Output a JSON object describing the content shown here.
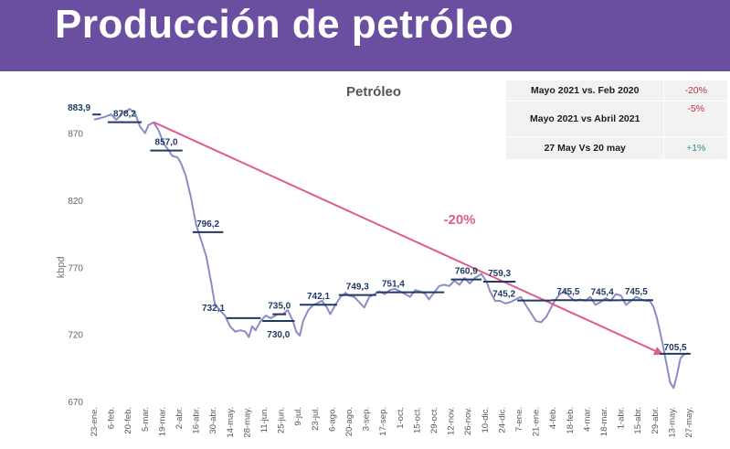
{
  "header": {
    "title": "Producción de petróleo"
  },
  "summary_table": {
    "rows": [
      {
        "label": "Mayo 2021 vs. Feb 2020",
        "value": "-20%",
        "color": "#c0304b"
      },
      {
        "label": "Mayo 2021 vs Abril 2021",
        "value": "-5%",
        "color": "#c0304b"
      },
      {
        "label": "27 May Vs 20 may",
        "value": "+1%",
        "color": "#3a8a8a"
      }
    ]
  },
  "colors": {
    "banner": "#6a4fa1",
    "line": "#8e8bc4",
    "levels": "#1f3a64",
    "label_text": "#1f3a64",
    "trend_arrow": "#e05c8c",
    "trend_label": "#e05c8c"
  },
  "chart_data": {
    "type": "line",
    "title": "Petróleo",
    "ylabel": "kbpd",
    "ylim": [
      670,
      893
    ],
    "yticks": [
      670,
      720,
      770,
      820,
      870
    ],
    "x_categories": [
      "23-ene.",
      "6-feb.",
      "20-feb.",
      "5-mar.",
      "19-mar.",
      "2-abr.",
      "16-abr.",
      "30-abr.",
      "14-may.",
      "28-may.",
      "11-jun.",
      "25-jun.",
      "9-jul.",
      "23-jul.",
      "6-ago.",
      "20-ago.",
      "3-sep.",
      "17-sep.",
      "1-oct.",
      "15-oct.",
      "29-oct.",
      "12-nov.",
      "26-nov.",
      "10-dic.",
      "24-dic.",
      "7-ene.",
      "21-ene.",
      "4-feb.",
      "18-feb.",
      "4-mar.",
      "18-mar.",
      "1-abr.",
      "15-abr.",
      "29-abr.",
      "13-may.",
      "27-may."
    ],
    "series": [
      {
        "values": [
          [
            0,
            880
          ],
          [
            0.6,
            882
          ],
          [
            1,
            884
          ],
          [
            1.3,
            880
          ],
          [
            1.7,
            885
          ],
          [
            2.1,
            888
          ],
          [
            2.4,
            885
          ],
          [
            2.7,
            875
          ],
          [
            3.0,
            870
          ],
          [
            3.2,
            876
          ],
          [
            3.5,
            878
          ],
          [
            3.8,
            872
          ],
          [
            4.1,
            862
          ],
          [
            4.4,
            857
          ],
          [
            4.6,
            853
          ],
          [
            4.9,
            852
          ],
          [
            5.1,
            848
          ],
          [
            5.4,
            838
          ],
          [
            5.7,
            822
          ],
          [
            6.0,
            802
          ],
          [
            6.3,
            790
          ],
          [
            6.6,
            778
          ],
          [
            6.9,
            758
          ],
          [
            7.1,
            743
          ],
          [
            7.4,
            738
          ],
          [
            7.7,
            734
          ],
          [
            8.0,
            726
          ],
          [
            8.3,
            722
          ],
          [
            8.6,
            723
          ],
          [
            8.9,
            722
          ],
          [
            9.1,
            718
          ],
          [
            9.3,
            726
          ],
          [
            9.5,
            723
          ],
          [
            9.8,
            730
          ],
          [
            10.1,
            734
          ],
          [
            10.4,
            732
          ],
          [
            10.8,
            735
          ],
          [
            11.1,
            735
          ],
          [
            11.4,
            738
          ],
          [
            11.7,
            730
          ],
          [
            11.9,
            722
          ],
          [
            12.1,
            719
          ],
          [
            12.3,
            730
          ],
          [
            12.6,
            738
          ],
          [
            12.9,
            742
          ],
          [
            13.1,
            743
          ],
          [
            13.4,
            745
          ],
          [
            13.7,
            740
          ],
          [
            13.9,
            735
          ],
          [
            14.2,
            742
          ],
          [
            14.5,
            748
          ],
          [
            14.8,
            751
          ],
          [
            15.0,
            749
          ],
          [
            15.3,
            748
          ],
          [
            15.6,
            744
          ],
          [
            15.9,
            740
          ],
          [
            16.2,
            748
          ],
          [
            16.5,
            750
          ],
          [
            16.8,
            752
          ],
          [
            17.1,
            750
          ],
          [
            17.4,
            753
          ],
          [
            17.7,
            754
          ],
          [
            18.0,
            752
          ],
          [
            18.3,
            750
          ],
          [
            18.6,
            748
          ],
          [
            18.9,
            753
          ],
          [
            19.2,
            752
          ],
          [
            19.5,
            750
          ],
          [
            19.7,
            746
          ],
          [
            20.0,
            751
          ],
          [
            20.3,
            756
          ],
          [
            20.6,
            757
          ],
          [
            20.9,
            756
          ],
          [
            21.2,
            760
          ],
          [
            21.5,
            757
          ],
          [
            21.8,
            762
          ],
          [
            22.1,
            758
          ],
          [
            22.4,
            762
          ],
          [
            22.8,
            765
          ],
          [
            23.1,
            759
          ],
          [
            23.3,
            752
          ],
          [
            23.6,
            745
          ],
          [
            23.9,
            745
          ],
          [
            24.2,
            743
          ],
          [
            24.5,
            744
          ],
          [
            24.8,
            746
          ],
          [
            25.1,
            748
          ],
          [
            25.4,
            742
          ],
          [
            25.7,
            736
          ],
          [
            26.0,
            730
          ],
          [
            26.3,
            729
          ],
          [
            26.6,
            733
          ],
          [
            26.9,
            740
          ],
          [
            27.1,
            745
          ],
          [
            27.4,
            750
          ],
          [
            27.7,
            752
          ],
          [
            28.0,
            748
          ],
          [
            28.3,
            745
          ],
          [
            28.6,
            746
          ],
          [
            28.9,
            745
          ],
          [
            29.2,
            748
          ],
          [
            29.5,
            742
          ],
          [
            29.8,
            744
          ],
          [
            30.1,
            747
          ],
          [
            30.4,
            745
          ],
          [
            30.7,
            750
          ],
          [
            31.0,
            749
          ],
          [
            31.3,
            742
          ],
          [
            31.6,
            745
          ],
          [
            31.9,
            748
          ],
          [
            32.2,
            746
          ],
          [
            32.5,
            745
          ],
          [
            32.7,
            745
          ],
          [
            32.9,
            741
          ],
          [
            33.1,
            733
          ],
          [
            33.3,
            722
          ],
          [
            33.5,
            710
          ],
          [
            33.7,
            697
          ],
          [
            33.9,
            684
          ],
          [
            34.1,
            680
          ],
          [
            34.3,
            690
          ],
          [
            34.5,
            702
          ],
          [
            34.7,
            705
          ],
          [
            35.0,
            706
          ]
        ]
      }
    ],
    "level_annotations": [
      {
        "x0": -0.1,
        "x1": 0.4,
        "y": 883.9,
        "label": "883,9"
      },
      {
        "x0": 0.8,
        "x1": 2.8,
        "y": 878.2,
        "label": "878,2"
      },
      {
        "x0": 3.3,
        "x1": 5.2,
        "y": 857.0,
        "label": "857,0"
      },
      {
        "x0": 5.8,
        "x1": 7.6,
        "y": 796.2,
        "label": "796,2"
      },
      {
        "x0": 7.8,
        "x1": 9.8,
        "y": 732.1,
        "label": "732,1"
      },
      {
        "x0": 9.9,
        "x1": 11.8,
        "y": 730.0,
        "label": "730,0"
      },
      {
        "x0": 10.5,
        "x1": 11.3,
        "y": 735.0,
        "label": "735,0"
      },
      {
        "x0": 12.1,
        "x1": 14.3,
        "y": 742.1,
        "label": "742,1"
      },
      {
        "x0": 14.4,
        "x1": 16.6,
        "y": 749.3,
        "label": "749,3"
      },
      {
        "x0": 16.6,
        "x1": 18.6,
        "y": 751.4,
        "label": "751,4"
      },
      {
        "x0": 18.6,
        "x1": 20.6,
        "y": 751.4,
        "label": ""
      },
      {
        "x0": 21.0,
        "x1": 22.8,
        "y": 760.9,
        "label": "760,9"
      },
      {
        "x0": 22.9,
        "x1": 24.8,
        "y": 759.3,
        "label": "759,3"
      },
      {
        "x0": 24.9,
        "x1": 26.9,
        "y": 745.2,
        "label": "745,2"
      },
      {
        "x0": 26.9,
        "x1": 28.9,
        "y": 745.5,
        "label": "745,5"
      },
      {
        "x0": 28.9,
        "x1": 30.9,
        "y": 745.4,
        "label": "745,4"
      },
      {
        "x0": 30.9,
        "x1": 32.9,
        "y": 745.5,
        "label": "745,5"
      },
      {
        "x0": 33.3,
        "x1": 35.1,
        "y": 705.5,
        "label": "705,5"
      }
    ],
    "trend": {
      "from": [
        3.5,
        878.2
      ],
      "to": [
        33.4,
        705.5
      ],
      "label": "-20%"
    }
  }
}
